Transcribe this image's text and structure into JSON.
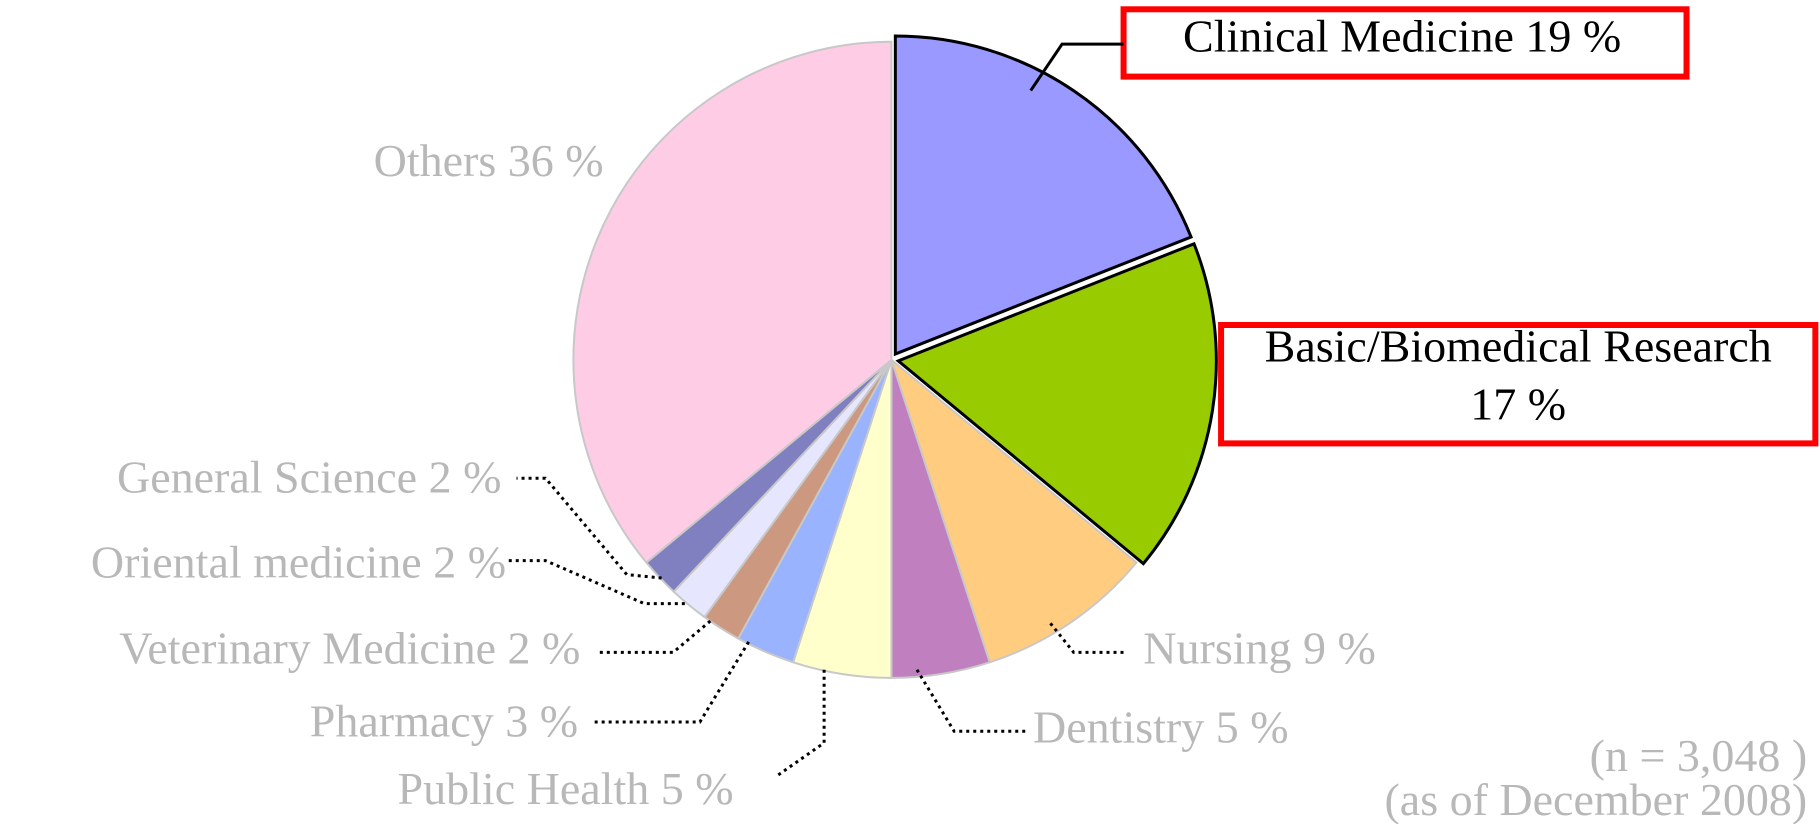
{
  "chart_data": {
    "type": "pie",
    "categories": [
      "Clinical Medicine",
      "Basic/Biomedical Research",
      "Nursing",
      "Dentistry",
      "Public Health",
      "Pharmacy",
      "Veterinary Medicine",
      "Oriental medicine",
      "General Science",
      "Others"
    ],
    "values": [
      19,
      17,
      9,
      5,
      5,
      3,
      2,
      2,
      2,
      36
    ],
    "value_labels": [
      "19 %",
      "17 %",
      "9 %",
      "5 %",
      "5 %",
      "3 %",
      "2 %",
      "2 %",
      "2 %",
      "36 %"
    ],
    "colors": [
      "#9999ff",
      "#99cc00",
      "#ffcc80",
      "#c080c0",
      "#ffffcc",
      "#99b3ff",
      "#cc9980",
      "#e6e6ff",
      "#8080c0",
      "#ffcce6"
    ],
    "annotations": [
      "(n = 3,048 )",
      "(as of December 2008)"
    ]
  }
}
